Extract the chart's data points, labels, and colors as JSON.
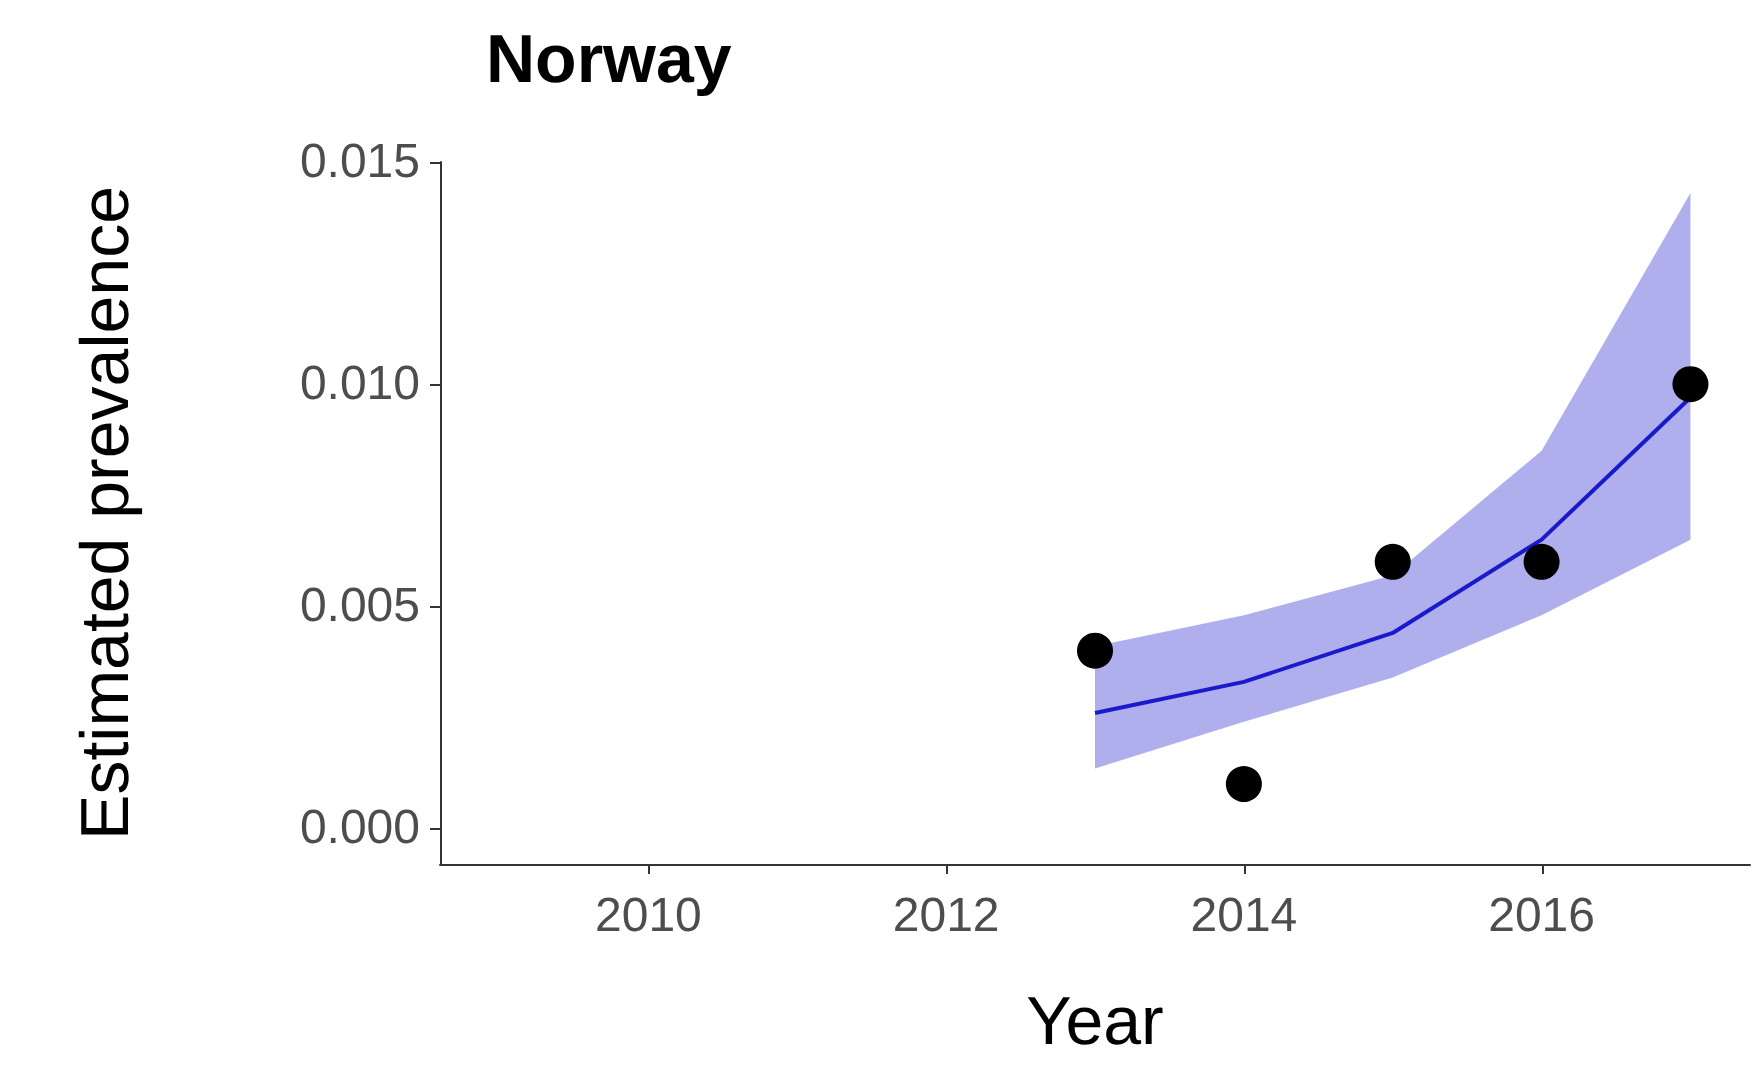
{
  "chart_data": {
    "type": "scatter",
    "title": "Norway",
    "xlabel": "Year",
    "ylabel": "Estimated prevalence",
    "xlim": [
      2008.6,
      2017.4
    ],
    "xticks": [
      2010,
      2012,
      2014,
      2016
    ],
    "ylim": [
      -0.0008,
      0.015
    ],
    "yticks": [
      {
        "value": 0,
        "label": "0.000"
      },
      {
        "value": 0.005,
        "label": "0.005"
      },
      {
        "value": 0.01,
        "label": "0.010"
      },
      {
        "value": 0.015,
        "label": "0.015"
      }
    ],
    "grid": false,
    "series": [
      {
        "type": "line",
        "color": "#1a1acc",
        "marker": "none",
        "x": [
          2013,
          2014,
          2015,
          2016,
          2017
        ],
        "values": [
          0.0026,
          0.0033,
          0.0044,
          0.0065,
          0.0097
        ],
        "lower": [
          0.00135,
          0.0024,
          0.0034,
          0.0048,
          0.0065
        ],
        "upper": [
          0.0041,
          0.0048,
          0.0057,
          0.0085,
          0.0143
        ]
      },
      {
        "color": "#000000",
        "marker": "circle",
        "x": [
          2013,
          2014,
          2015,
          2016,
          2017
        ],
        "values": [
          0.004,
          0.001,
          0.006,
          0.006,
          0.01
        ]
      }
    ]
  }
}
